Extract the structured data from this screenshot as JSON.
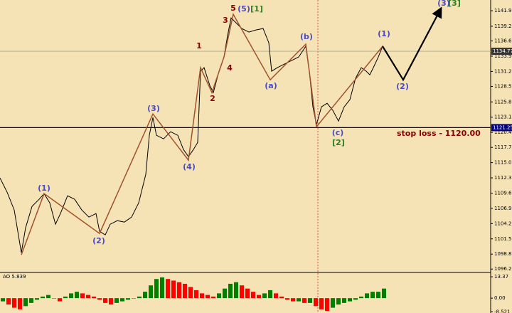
{
  "chart_data": {
    "type": "line",
    "xlim": [
      0,
      138
    ],
    "ylim": [
      1095.6,
      1143.85
    ],
    "yticks": [
      1141.95,
      {
        "value": 1139.2,
        "label": "1139.20"
      },
      {
        "value": 1136.6,
        "label": "1136.60"
      },
      {
        "value": 1133.9,
        "label": "1133.90"
      },
      {
        "value": 1131.2,
        "label": "1131.20"
      },
      1128.55,
      {
        "value": 1125.8,
        "label": "1125.80"
      },
      {
        "value": 1123.1,
        "label": "1123.10"
      },
      {
        "value": 1120.4,
        "label": "1120.40"
      },
      1117.75,
      1115.05,
      1112.35,
      1109.65,
      1106.95,
      1104.25,
      1101.55,
      1098.85,
      {
        "value": 1096.2,
        "label": "1096.20"
      }
    ],
    "series": [
      {
        "color": "#000000",
        "x": [
          0,
          2,
          4,
          6,
          7.2,
          9,
          11,
          12.4,
          14,
          15.6,
          17,
          19,
          21,
          23,
          25,
          27,
          28,
          29.6,
          31,
          33,
          35,
          37,
          39,
          41,
          42,
          43,
          44,
          46,
          48,
          50,
          51.6,
          53,
          54.4,
          55.6,
          56.4,
          57.4,
          59,
          60,
          61.6,
          63,
          64,
          65,
          66,
          68,
          70,
          72,
          74,
          75.6,
          76.4,
          78,
          80,
          82,
          84,
          86,
          87,
          88,
          89,
          90.4,
          92,
          93.6,
          95.2,
          96.8,
          98.4,
          100,
          101.6,
          103,
          104,
          105,
          106.4,
          107.6,
          109
        ],
        "values": [
          1112.33,
          1109.81,
          1106.66,
          1099.1,
          1103.51,
          1107.29,
          1108.55,
          1109.56,
          1107.92,
          1104.14,
          1106.03,
          1109.18,
          1108.55,
          1106.66,
          1105.4,
          1106.03,
          1102.88,
          1102.25,
          1104.14,
          1104.77,
          1104.52,
          1105.4,
          1107.92,
          1112.96,
          1119.89,
          1123.04,
          1119.89,
          1119.26,
          1120.52,
          1119.89,
          1117.37,
          1116.11,
          1117.37,
          1118.63,
          1131.24,
          1131.87,
          1128.72,
          1127.46,
          1131.24,
          1133.76,
          1137.54,
          1140.69,
          1140.06,
          1138.8,
          1138.17,
          1138.55,
          1138.8,
          1136.28,
          1131.24,
          1131.87,
          1132.5,
          1133.13,
          1133.76,
          1135.65,
          1131.24,
          1124.93,
          1121.78,
          1124.93,
          1125.56,
          1124.3,
          1122.41,
          1124.93,
          1126.2,
          1129.98,
          1131.87,
          1131.24,
          1130.61,
          1131.87,
          1133.76,
          1135.65,
          1134.39
        ]
      },
      {
        "color": "#a0522d",
        "x": [
          6,
          12.4,
          28,
          43,
          53,
          56.4,
          59.6,
          63,
          65.6,
          76,
          86,
          89,
          107.6
        ],
        "values": [
          1098.72,
          1109.56,
          1102.5,
          1123.67,
          1115.48,
          1131.87,
          1127.46,
          1133.76,
          1141.32,
          1129.72,
          1136.03,
          1121.4,
          1135.65
        ]
      },
      {
        "color": "#000000",
        "x": [
          107.6,
          113.4,
          124
        ],
        "values": [
          1135.65,
          1129.72,
          1142.33
        ]
      }
    ],
    "price_line": 1134.77,
    "level": 1121.25,
    "level_color": "#00007f",
    "annotations": [
      {
        "text": "(1)",
        "color": "#4b4bc8"
      },
      {
        "text": "(2)",
        "color": "#4b4bc8"
      },
      {
        "text": "(3)",
        "color": "#4b4bc8"
      },
      {
        "text": "(4)",
        "color": "#4b4bc8"
      },
      {
        "text": "1",
        "color": "#8b0000"
      },
      {
        "text": "2",
        "color": "#8b0000"
      },
      {
        "text": "3",
        "color": "#8b0000"
      },
      {
        "text": "4",
        "color": "#8b0000"
      },
      {
        "text": "5",
        "color": "#8b0000"
      },
      {
        "text": "(5)",
        "color": "#4b4bc8"
      },
      {
        "text": "[1]",
        "color": "#2e7d1f"
      },
      {
        "text": "(a)",
        "color": "#4b4bc8"
      },
      {
        "text": "(b)",
        "color": "#4b4bc8"
      },
      {
        "text": "(c)",
        "color": "#4b4bc8"
      },
      {
        "text": "[2]",
        "color": "#2e7d1f"
      },
      {
        "text": "(1)",
        "color": "#4b4bc8"
      },
      {
        "text": "(2)",
        "color": "#4b4bc8"
      },
      {
        "text": "(3)",
        "color": "#4b4bc8"
      },
      {
        "text": "[3]",
        "color": "#2e7d1f"
      },
      {
        "text": "stop loss - 1120.00",
        "color": "#8b0000"
      }
    ],
    "indicator": {
      "label": "AO 5.839",
      "ylim": [
        -9.3,
        16.1
      ],
      "yticks": [
        13.37,
        {
          "value": 0,
          "label": "0.00"
        },
        -8.521
      ],
      "up_color": "#008000",
      "down_color": "#ff0000",
      "values": [
        -2,
        -4,
        -6,
        -7,
        -5,
        -3,
        -1,
        1,
        2,
        0,
        -2,
        1,
        3,
        4,
        3,
        2,
        1,
        -1,
        -3,
        -4,
        -3,
        -2,
        -1,
        0,
        1,
        4,
        8,
        12,
        13,
        12,
        11,
        10,
        9,
        7,
        5,
        3,
        2,
        1,
        3,
        6,
        9,
        10,
        8,
        6,
        4,
        2,
        3,
        5,
        3,
        1,
        -1,
        -2,
        -2,
        -3,
        -3,
        -5,
        -7,
        -8,
        -6,
        -4,
        -3,
        -2,
        -1,
        1,
        3,
        4,
        4,
        6
      ]
    }
  }
}
